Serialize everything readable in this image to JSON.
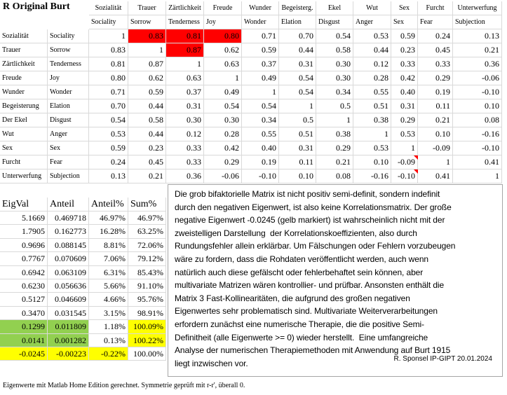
{
  "title": "R Original Burt",
  "matrix": {
    "columns_de": [
      "Sozialität",
      "Trauer",
      "Zärtlichkeit",
      "Freude",
      "Wunder",
      "Begeisterg.",
      "Ekel",
      "Wut",
      "Sex",
      "Furcht",
      "Unterwerfung"
    ],
    "columns_en": [
      "Sociality",
      "Sorrow",
      "Tenderness",
      "Joy",
      "Wonder",
      "Elation",
      "Disgust",
      "Anger",
      "Sex",
      "Fear",
      "Subjection"
    ],
    "rows": [
      {
        "de": "Sozialität",
        "en": "Sociality",
        "values": [
          "1",
          "0.83",
          "0.81",
          "0.80",
          "0.71",
          "0.70",
          "0.54",
          "0.53",
          "0.59",
          "0.24",
          "0.13"
        ]
      },
      {
        "de": "Trauer",
        "en": "Sorrow",
        "values": [
          "0.83",
          "1",
          "0.87",
          "0.62",
          "0.59",
          "0.44",
          "0.58",
          "0.44",
          "0.23",
          "0.45",
          "0.21"
        ]
      },
      {
        "de": "Zärtlichkeit",
        "en": "Tenderness",
        "values": [
          "0.81",
          "0.87",
          "1",
          "0.63",
          "0.37",
          "0.31",
          "0.30",
          "0.12",
          "0.33",
          "0.33",
          "0.36"
        ]
      },
      {
        "de": "Freude",
        "en": "Joy",
        "values": [
          "0.80",
          "0.62",
          "0.63",
          "1",
          "0.49",
          "0.54",
          "0.30",
          "0.28",
          "0.42",
          "0.29",
          "-0.06"
        ]
      },
      {
        "de": "Wunder",
        "en": "Wonder",
        "values": [
          "0.71",
          "0.59",
          "0.37",
          "0.49",
          "1",
          "0.54",
          "0.34",
          "0.55",
          "0.40",
          "0.19",
          "-0.10"
        ]
      },
      {
        "de": "Begeisterung",
        "en": "Elation",
        "values": [
          "0.70",
          "0.44",
          "0.31",
          "0.54",
          "0.54",
          "1",
          "0.5",
          "0.51",
          "0.31",
          "0.11",
          "0.10"
        ]
      },
      {
        "de": "Der Ekel",
        "en": "Disgust",
        "values": [
          "0.54",
          "0.58",
          "0.30",
          "0.30",
          "0.34",
          "0.5",
          "1",
          "0.38",
          "0.29",
          "0.21",
          "0.08"
        ]
      },
      {
        "de": "Wut",
        "en": "Anger",
        "values": [
          "0.53",
          "0.44",
          "0.12",
          "0.28",
          "0.55",
          "0.51",
          "0.38",
          "1",
          "0.53",
          "0.10",
          "-0.16"
        ]
      },
      {
        "de": "Sex",
        "en": "Sex",
        "values": [
          "0.59",
          "0.23",
          "0.33",
          "0.42",
          "0.40",
          "0.31",
          "0.29",
          "0.53",
          "1",
          "-0.09",
          "-0.10"
        ]
      },
      {
        "de": "Furcht",
        "en": "Fear",
        "values": [
          "0.24",
          "0.45",
          "0.33",
          "0.29",
          "0.19",
          "0.11",
          "0.21",
          "0.10",
          "-0.09",
          "1",
          "0.41"
        ]
      },
      {
        "de": "Unterwerfung",
        "en": "Subjection",
        "values": [
          "0.13",
          "0.21",
          "0.36",
          "-0.06",
          "-0.10",
          "0.10",
          "0.08",
          "-0.16",
          "-0.10",
          "0.41",
          "1"
        ]
      }
    ]
  },
  "eigen": {
    "headers": [
      "EigVal",
      "Anteil",
      "Anteil%",
      "Sum%"
    ],
    "rows": [
      [
        "5.1669",
        "0.469718",
        "46.97%",
        "46.97%"
      ],
      [
        "1.7905",
        "0.162773",
        "16.28%",
        "63.25%"
      ],
      [
        "0.9696",
        "0.088145",
        "8.81%",
        "72.06%"
      ],
      [
        "0.7767",
        "0.070609",
        "7.06%",
        "79.12%"
      ],
      [
        "0.6942",
        "0.063109",
        "6.31%",
        "85.43%"
      ],
      [
        "0.6230",
        "0.056636",
        "5.66%",
        "91.10%"
      ],
      [
        "0.5127",
        "0.046609",
        "4.66%",
        "95.76%"
      ],
      [
        "0.3470",
        "0.031545",
        "3.15%",
        "98.91%"
      ],
      [
        "0.1299",
        "0.011809",
        "1.18%",
        "100.09%"
      ],
      [
        "0.0141",
        "0.001282",
        "0.13%",
        "100.22%"
      ],
      [
        "-0.0245",
        "-0.00223",
        "-0.22%",
        "100.00%"
      ]
    ]
  },
  "note": {
    "lines": [
      "Die grob bifaktorielle Matrix ist nicht positiv semi-definit, sondern indefinit",
      "durch den negativen Eigenwert, ist also keine Korrelationsmatrix. Der große",
      "negative Eigenwert -0.0245 (gelb markiert) ist wahrscheinlich nicht mit der",
      "zweistelligen Darstellung  der Korrelationskoeffizienten, also durch",
      "Rundungsfehler allein erklärbar. Um Fälschungen oder Fehlern vorzubeugen",
      "wäre zu fordern, dass die Rohdaten veröffentlicht werden, auch wenn",
      "natürlich auch diese gefälscht oder fehlerbehaftet sein können, aber",
      "multivariate Matrizen wären kontrollier- und prüfbar. Ansonsten enthält die",
      "Matrix 3 Fast-Kollinearitäten, die aufgrund des großen negativen",
      "Eigenwertes sehr problematisch sind. Multivariate Weiterverarbeitungen",
      "erfordern zunächst eine numerische Therapie, die die positive Semi-",
      "Definitheit (alle Eigenwerte >= 0) wieder herstellt.  Eine umfangreiche",
      "Analyse der numerischen Therapiemethoden mit Anwendung auf Burt 1915",
      "liegt inzwischen vor."
    ],
    "signature": "R. Sponsel IP-GIPT 20.01.2024"
  },
  "footer": "Eigenwerte mit Matlab Home Edition gerechnet. Symmetrie geprüft mit r-r', überall 0."
}
